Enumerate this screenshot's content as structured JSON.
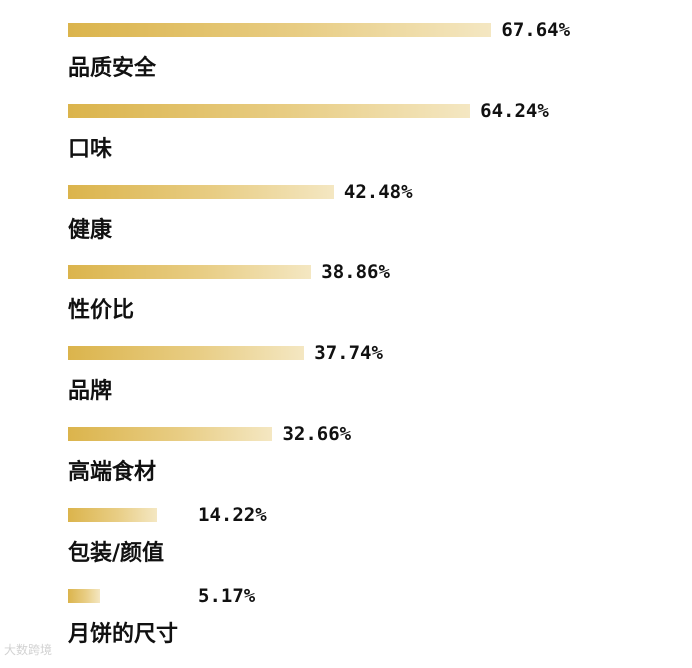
{
  "chart_data": {
    "type": "bar",
    "orientation": "horizontal",
    "categories": [
      "品质安全",
      "口味",
      "健康",
      "性价比",
      "品牌",
      "高端食材",
      "包装/颜值",
      "月饼的尺寸"
    ],
    "values": [
      67.64,
      64.24,
      42.48,
      38.86,
      37.74,
      32.66,
      14.22,
      5.17
    ],
    "value_labels": [
      "67.64%",
      "64.24%",
      "42.48%",
      "38.86%",
      "37.74%",
      "32.66%",
      "14.22%",
      "5.17%"
    ],
    "unit": "%",
    "title": "",
    "xlabel": "",
    "ylabel": "",
    "grid": false,
    "legend": "none",
    "bar_color_start": "#dbb44c",
    "bar_color_end": "#f4e7c2"
  },
  "watermark": "大数跨境"
}
